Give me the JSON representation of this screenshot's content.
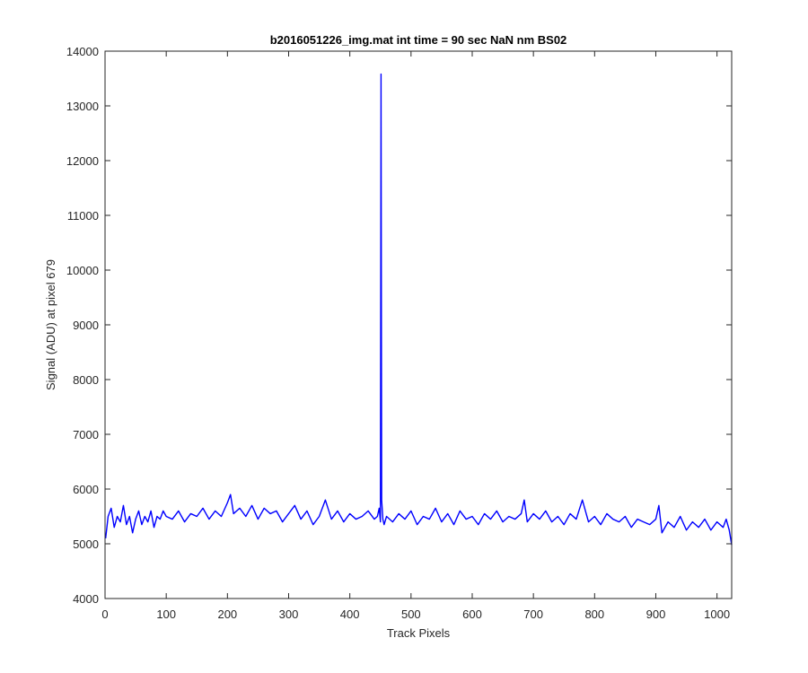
{
  "chart_data": {
    "type": "line",
    "title": "b2016051226_img.mat int time = 90 sec  NaN nm BS02",
    "xlabel": "Track Pixels",
    "ylabel": "Signal (ADU) at pixel 679",
    "xlim": [
      0,
      1024
    ],
    "ylim": [
      4000,
      14000
    ],
    "xticks": [
      0,
      100,
      200,
      300,
      400,
      500,
      600,
      700,
      800,
      900,
      1000
    ],
    "yticks": [
      4000,
      5000,
      6000,
      7000,
      8000,
      9000,
      10000,
      11000,
      12000,
      13000,
      14000
    ],
    "xtick_labels": [
      "0",
      "100",
      "200",
      "300",
      "400",
      "500",
      "600",
      "700",
      "800",
      "900",
      "1000"
    ],
    "ytick_labels": [
      "4000",
      "5000",
      "6000",
      "7000",
      "8000",
      "9000",
      "10000",
      "11000",
      "12000",
      "13000",
      "14000"
    ],
    "grid": false,
    "line_color": "#0000ff",
    "axis_color": "#262626",
    "series": [
      {
        "x": [
          1,
          5,
          10,
          15,
          20,
          25,
          30,
          35,
          40,
          45,
          50,
          55,
          60,
          65,
          70,
          75,
          80,
          85,
          90,
          95,
          100,
          110,
          120,
          130,
          140,
          150,
          160,
          170,
          180,
          190,
          200,
          205,
          210,
          220,
          230,
          240,
          250,
          260,
          270,
          280,
          290,
          300,
          310,
          320,
          330,
          340,
          350,
          360,
          370,
          380,
          390,
          400,
          410,
          420,
          430,
          440,
          445,
          448,
          450,
          451,
          452,
          454,
          456,
          460,
          470,
          480,
          490,
          500,
          510,
          520,
          530,
          540,
          550,
          560,
          570,
          580,
          590,
          600,
          610,
          620,
          630,
          640,
          650,
          660,
          670,
          680,
          685,
          690,
          700,
          710,
          720,
          730,
          740,
          750,
          760,
          770,
          780,
          790,
          800,
          810,
          820,
          830,
          840,
          850,
          860,
          870,
          880,
          890,
          900,
          905,
          910,
          920,
          930,
          940,
          950,
          960,
          970,
          980,
          990,
          1000,
          1010,
          1015,
          1020,
          1024
        ],
        "y": [
          5100,
          5500,
          5650,
          5300,
          5500,
          5400,
          5700,
          5350,
          5500,
          5200,
          5450,
          5600,
          5350,
          5500,
          5400,
          5600,
          5300,
          5500,
          5450,
          5600,
          5500,
          5450,
          5600,
          5400,
          5550,
          5500,
          5650,
          5450,
          5600,
          5500,
          5750,
          5900,
          5550,
          5650,
          5500,
          5700,
          5450,
          5650,
          5550,
          5600,
          5400,
          5550,
          5700,
          5450,
          5600,
          5350,
          5500,
          5800,
          5450,
          5600,
          5400,
          5550,
          5450,
          5500,
          5600,
          5450,
          5500,
          5650,
          5400,
          13580,
          5800,
          5450,
          5350,
          5500,
          5400,
          5550,
          5450,
          5600,
          5350,
          5500,
          5450,
          5650,
          5400,
          5550,
          5350,
          5600,
          5450,
          5500,
          5350,
          5550,
          5450,
          5600,
          5400,
          5500,
          5450,
          5550,
          5800,
          5400,
          5550,
          5450,
          5600,
          5400,
          5500,
          5350,
          5550,
          5450,
          5800,
          5400,
          5500,
          5350,
          5550,
          5450,
          5400,
          5500,
          5300,
          5450,
          5400,
          5350,
          5450,
          5700,
          5200,
          5400,
          5300,
          5500,
          5250,
          5400,
          5300,
          5450,
          5250,
          5400,
          5300,
          5450,
          5250,
          4980
        ]
      }
    ]
  }
}
